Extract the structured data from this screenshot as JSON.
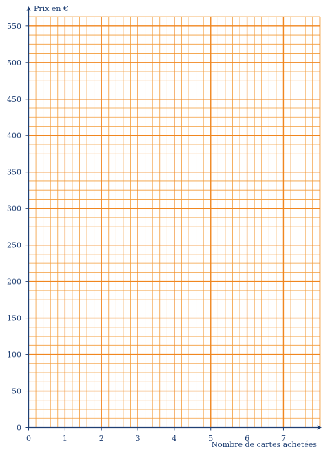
{
  "chart_data": {
    "type": "line",
    "title": "",
    "xlabel": "Nombre de cartes achetées",
    "ylabel": "Prix en €",
    "xlim": [
      0,
      8
    ],
    "ylim": [
      0,
      560
    ],
    "x_ticks": [
      0,
      1,
      2,
      3,
      4,
      5,
      6,
      7
    ],
    "y_ticks": [
      0,
      50,
      100,
      150,
      200,
      250,
      300,
      350,
      400,
      450,
      500,
      550
    ],
    "x_minor_step": 0.2,
    "y_minor_step": 12.5,
    "grid": true,
    "series": [],
    "colors": {
      "grid": "#f39c3a",
      "grid_major": "#f0861f",
      "axis": "#1f3f73",
      "text": "#1f3f73"
    }
  }
}
